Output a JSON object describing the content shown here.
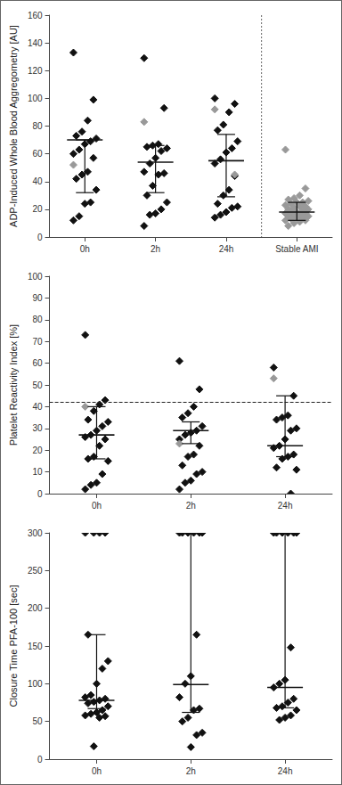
{
  "chart_data": [
    {
      "type": "scatter",
      "y_label": "ADP-Induced Whole Blood Aggregometry [AU]",
      "categories": [
        "0h",
        "2h",
        "24h",
        "Stable AMI"
      ],
      "ylim": [
        0,
        160
      ],
      "yticks": [
        0,
        20,
        40,
        60,
        80,
        100,
        120,
        140,
        160
      ],
      "grid": false,
      "marker": "diamond",
      "series": [
        {
          "color": "#111111",
          "values": [
            [
              133,
              99,
              84,
              76,
              73,
              71,
              69,
              67,
              63,
              60,
              57,
              47,
              45,
              42,
              34,
              25,
              24,
              15,
              12
            ],
            [
              129,
              93,
              67,
              66,
              65,
              64,
              62,
              57,
              53,
              47,
              46,
              45,
              37,
              30,
              25,
              20,
              17,
              16,
              8
            ],
            [
              100,
              96,
              90,
              81,
              77,
              69,
              64,
              61,
              56,
              53,
              44,
              34,
              30,
              24,
              22,
              21,
              18,
              16,
              14
            ],
            []
          ]
        },
        {
          "color": "#999999",
          "values": [
            [
              52
            ],
            [
              83
            ],
            [
              92,
              45
            ],
            [
              63,
              35,
              30,
              28,
              27,
              26,
              25,
              25,
              24,
              23,
              22,
              22,
              21,
              20,
              20,
              19,
              18,
              18,
              17,
              17,
              16,
              16,
              15,
              15,
              14,
              14,
              13,
              12,
              12,
              11,
              10,
              8
            ]
          ]
        }
      ],
      "median": [
        70,
        54,
        55,
        18
      ],
      "range_low": [
        32,
        32,
        29,
        12
      ],
      "range_high": [
        70,
        66,
        74,
        25
      ]
    },
    {
      "type": "scatter",
      "y_label": "Platelet Reactivity Index [%]",
      "categories": [
        "0h",
        "2h",
        "24h"
      ],
      "ylim": [
        0,
        100
      ],
      "yticks": [
        0,
        10,
        20,
        30,
        40,
        50,
        60,
        70,
        80,
        90,
        100
      ],
      "grid": false,
      "marker": "diamond",
      "threshold": 42,
      "series": [
        {
          "color": "#111111",
          "values": [
            [
              73,
              43,
              41,
              38,
              34,
              33,
              31,
              29,
              27,
              26,
              25,
              22,
              17,
              16,
              15,
              9,
              5,
              4,
              2
            ],
            [
              61,
              48,
              40,
              37,
              35,
              31,
              29,
              28,
              27,
              25,
              22,
              18,
              17,
              13,
              10,
              9,
              6,
              5,
              2
            ],
            [
              58,
              45,
              36,
              35,
              34,
              30,
              29,
              25,
              22,
              21,
              18,
              17,
              16,
              12,
              11,
              0
            ]
          ]
        },
        {
          "color": "#999999",
          "values": [
            [
              40
            ],
            [
              23
            ],
            [
              53
            ]
          ]
        }
      ],
      "median": [
        27,
        29,
        22
      ],
      "range_low": [
        16,
        23,
        17
      ],
      "range_high": [
        40,
        33,
        45
      ]
    },
    {
      "type": "scatter",
      "y_label": "Closure Time PFA-100 [sec]",
      "categories": [
        "0h",
        "2h",
        "24h"
      ],
      "ylim": [
        0,
        300
      ],
      "yticks": [
        0,
        50,
        100,
        150,
        200,
        250,
        300
      ],
      "grid": false,
      "marker": "diamond",
      "series": [
        {
          "color": "#111111",
          "values": [
            [
              300,
              300,
              300,
              300,
              165,
              130,
              120,
              100,
              85,
              82,
              80,
              78,
              76,
              74,
              70,
              65,
              62,
              60,
              58,
              57,
              55,
              17
            ],
            [
              300,
              300,
              300,
              300,
              300,
              300,
              165,
              110,
              100,
              82,
              67,
              65,
              55,
              50,
              35,
              32,
              16
            ],
            [
              300,
              300,
              300,
              300,
              300,
              300,
              148,
              105,
              100,
              95,
              80,
              75,
              70,
              68,
              65,
              58,
              55,
              52
            ]
          ]
        }
      ],
      "median": [
        78,
        99,
        95
      ],
      "range_low": [
        67,
        62,
        68
      ],
      "range_high": [
        165,
        300,
        300
      ]
    }
  ]
}
